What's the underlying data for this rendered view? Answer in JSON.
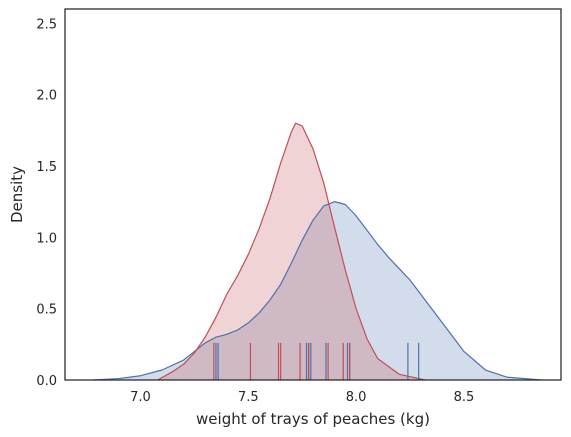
{
  "chart_data": {
    "type": "area",
    "subtype": "kde-with-rug",
    "title": "",
    "xlabel": "weight of trays of peaches (kg)",
    "ylabel": "Density",
    "xlim": [
      6.65,
      8.95
    ],
    "ylim": [
      0,
      2.6
    ],
    "xticks": [
      7.0,
      7.5,
      8.0,
      8.5
    ],
    "xtick_labels": [
      "7.0",
      "7.5",
      "8.0",
      "8.5"
    ],
    "yticks": [
      0.0,
      0.5,
      1.0,
      1.5,
      2.0,
      2.5
    ],
    "ytick_labels": [
      "0.0",
      "0.5",
      "1.0",
      "1.5",
      "2.0",
      "2.5"
    ],
    "grid": false,
    "legend": "none",
    "rug_height": 0.26,
    "series": [
      {
        "color": "#4c72b0",
        "fill_color": "#d0d8ea",
        "x": [
          6.78,
          6.9,
          7.0,
          7.1,
          7.2,
          7.25,
          7.3,
          7.35,
          7.4,
          7.45,
          7.5,
          7.55,
          7.6,
          7.65,
          7.7,
          7.75,
          7.8,
          7.85,
          7.9,
          7.95,
          8.0,
          8.05,
          8.1,
          8.15,
          8.2,
          8.25,
          8.3,
          8.4,
          8.5,
          8.6,
          8.7,
          8.86
        ],
        "y": [
          0.0,
          0.01,
          0.03,
          0.07,
          0.14,
          0.2,
          0.26,
          0.3,
          0.32,
          0.35,
          0.4,
          0.47,
          0.56,
          0.67,
          0.82,
          0.98,
          1.12,
          1.22,
          1.25,
          1.23,
          1.15,
          1.05,
          0.95,
          0.86,
          0.78,
          0.7,
          0.6,
          0.4,
          0.2,
          0.07,
          0.02,
          0.0
        ],
        "rug": [
          7.35,
          7.36,
          7.77,
          7.78,
          7.79,
          7.86,
          7.96,
          7.97,
          8.24,
          8.29
        ]
      },
      {
        "color": "#c44e52",
        "fill_color": "#f0c7c8",
        "x": [
          7.08,
          7.15,
          7.2,
          7.25,
          7.3,
          7.35,
          7.4,
          7.45,
          7.5,
          7.55,
          7.6,
          7.65,
          7.7,
          7.72,
          7.75,
          7.8,
          7.85,
          7.9,
          7.95,
          8.0,
          8.05,
          8.1,
          8.2,
          8.32
        ],
        "y": [
          0.0,
          0.06,
          0.11,
          0.19,
          0.3,
          0.44,
          0.6,
          0.73,
          0.88,
          1.06,
          1.27,
          1.52,
          1.74,
          1.8,
          1.78,
          1.62,
          1.38,
          1.07,
          0.77,
          0.5,
          0.29,
          0.15,
          0.04,
          0.0
        ],
        "rug": [
          7.34,
          7.51,
          7.64,
          7.65,
          7.74,
          7.78,
          7.87,
          7.94,
          7.97
        ]
      }
    ]
  }
}
